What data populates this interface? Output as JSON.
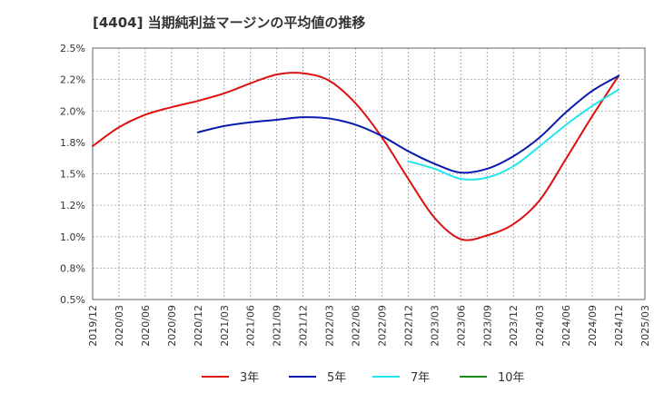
{
  "chart_data": {
    "type": "line",
    "title": "[4404]  当期純利益マージンの平均値の推移",
    "xlabel": "",
    "ylabel": "",
    "x_ticks": [
      "2019/12",
      "2020/03",
      "2020/06",
      "2020/09",
      "2020/12",
      "2021/03",
      "2021/06",
      "2021/09",
      "2021/12",
      "2022/03",
      "2022/06",
      "2022/09",
      "2022/12",
      "2023/03",
      "2023/06",
      "2023/09",
      "2023/12",
      "2024/03",
      "2024/06",
      "2024/09",
      "2024/12",
      "2025/03"
    ],
    "y_ticks": [
      "0.5%",
      "0.8%",
      "1.0%",
      "1.2%",
      "1.5%",
      "1.8%",
      "2.0%",
      "2.2%",
      "2.5%"
    ],
    "ylim": [
      0.5,
      2.5
    ],
    "grid": true,
    "legend_position": "bottom",
    "series": [
      {
        "name": "3年",
        "color": "#dd1111",
        "x": [
          "2019/12",
          "2020/03",
          "2020/06",
          "2020/09",
          "2020/12",
          "2021/03",
          "2021/06",
          "2021/09",
          "2021/12",
          "2022/03",
          "2022/06",
          "2022/09",
          "2022/12",
          "2023/03",
          "2023/06",
          "2023/09",
          "2023/12",
          "2024/03",
          "2024/06",
          "2024/09",
          "2024/12"
        ],
        "values": [
          1.72,
          1.87,
          1.97,
          2.03,
          2.08,
          2.14,
          2.22,
          2.29,
          2.3,
          2.24,
          2.06,
          1.79,
          1.46,
          1.15,
          0.98,
          1.01,
          1.1,
          1.29,
          1.62,
          1.96,
          2.28
        ]
      },
      {
        "name": "5年",
        "color": "#0a1aad",
        "x": [
          "2020/12",
          "2021/03",
          "2021/06",
          "2021/09",
          "2021/12",
          "2022/03",
          "2022/06",
          "2022/09",
          "2022/12",
          "2023/03",
          "2023/06",
          "2023/09",
          "2023/12",
          "2024/03",
          "2024/06",
          "2024/09",
          "2024/12"
        ],
        "values": [
          1.83,
          1.88,
          1.91,
          1.93,
          1.95,
          1.94,
          1.89,
          1.8,
          1.68,
          1.58,
          1.51,
          1.54,
          1.64,
          1.79,
          1.99,
          2.16,
          2.28
        ]
      },
      {
        "name": "7年",
        "color": "#22e5ea",
        "x": [
          "2022/12",
          "2023/03",
          "2023/06",
          "2023/09",
          "2023/12",
          "2024/03",
          "2024/06",
          "2024/09",
          "2024/12"
        ],
        "values": [
          1.6,
          1.54,
          1.46,
          1.47,
          1.56,
          1.72,
          1.89,
          2.04,
          2.17
        ]
      },
      {
        "name": "10年",
        "color": "#1a8a1a",
        "x": [],
        "values": []
      }
    ]
  }
}
